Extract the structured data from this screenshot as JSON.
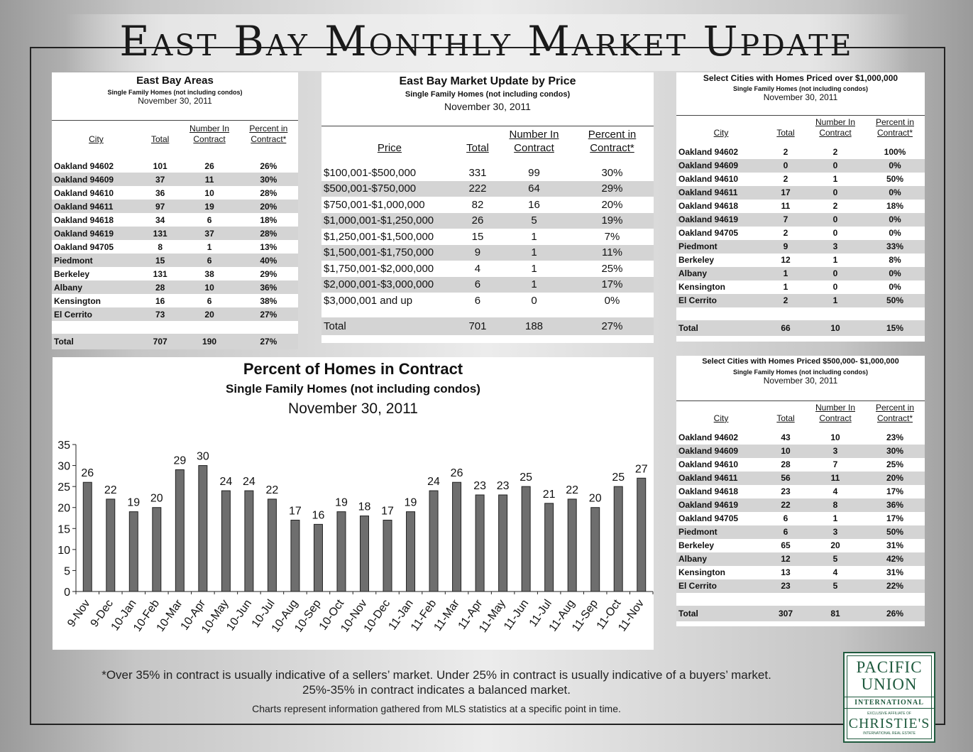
{
  "title": "East Bay Monthly Market Update",
  "areas": {
    "title": "East Bay Areas",
    "subtitle": "Single Family Homes (not including condos)",
    "date": "November 30, 2011",
    "headers": [
      "City",
      "Total",
      "Number In Contract",
      "Percent in Contract*"
    ],
    "rows": [
      [
        "Oakland 94602",
        "101",
        "26",
        "26%"
      ],
      [
        "Oakland 94609",
        "37",
        "11",
        "30%"
      ],
      [
        "Oakland 94610",
        "36",
        "10",
        "28%"
      ],
      [
        "Oakland 94611",
        "97",
        "19",
        "20%"
      ],
      [
        "Oakland 94618",
        "34",
        "6",
        "18%"
      ],
      [
        "Oakland 94619",
        "131",
        "37",
        "28%"
      ],
      [
        "Oakland 94705",
        "8",
        "1",
        "13%"
      ],
      [
        "Piedmont",
        "15",
        "6",
        "40%"
      ],
      [
        "Berkeley",
        "131",
        "38",
        "29%"
      ],
      [
        "Albany",
        "28",
        "10",
        "36%"
      ],
      [
        "Kensington",
        "16",
        "6",
        "38%"
      ],
      [
        "El Cerrito",
        "73",
        "20",
        "27%"
      ]
    ],
    "total": [
      "Total",
      "707",
      "190",
      "27%"
    ]
  },
  "price": {
    "title": "East Bay Market Update by Price",
    "subtitle": "Single Family Homes (not including condos)",
    "date": "November 30, 2011",
    "headers": [
      "Price",
      "Total",
      "Number In Contract",
      "Percent in Contract*"
    ],
    "rows": [
      [
        "$100,001-$500,000",
        "331",
        "99",
        "30%"
      ],
      [
        "$500,001-$750,000",
        "222",
        "64",
        "29%"
      ],
      [
        "$750,001-$1,000,000",
        "82",
        "16",
        "20%"
      ],
      [
        "$1,000,001-$1,250,000",
        "26",
        "5",
        "19%"
      ],
      [
        "$1,250,001-$1,500,000",
        "15",
        "1",
        "7%"
      ],
      [
        "$1,500,001-$1,750,000",
        "9",
        "1",
        "11%"
      ],
      [
        "$1,750,001-$2,000,000",
        "4",
        "1",
        "25%"
      ],
      [
        "$2,000,001-$3,000,000",
        "6",
        "1",
        "17%"
      ],
      [
        "$3,000,001 and up",
        "6",
        "0",
        "0%"
      ]
    ],
    "total": [
      "Total",
      "701",
      "188",
      "27%"
    ]
  },
  "over_million": {
    "title": "Select Cities with Homes Priced over $1,000,000",
    "subtitle": "Single Family Homes (not including condos)",
    "date": "November 30, 2011",
    "headers": [
      "City",
      "Total",
      "Number In Contract",
      "Percent in Contract*"
    ],
    "rows": [
      [
        "Oakland 94602",
        "2",
        "2",
        "100%"
      ],
      [
        "Oakland 94609",
        "0",
        "0",
        "0%"
      ],
      [
        "Oakland 94610",
        "2",
        "1",
        "50%"
      ],
      [
        "Oakland 94611",
        "17",
        "0",
        "0%"
      ],
      [
        "Oakland 94618",
        "11",
        "2",
        "18%"
      ],
      [
        "Oakland 94619",
        "7",
        "0",
        "0%"
      ],
      [
        "Oakland 94705",
        "2",
        "0",
        "0%"
      ],
      [
        "Piedmont",
        "9",
        "3",
        "33%"
      ],
      [
        "Berkeley",
        "12",
        "1",
        "8%"
      ],
      [
        "Albany",
        "1",
        "0",
        "0%"
      ],
      [
        "Kensington",
        "1",
        "0",
        "0%"
      ],
      [
        "El Cerrito",
        "2",
        "1",
        "50%"
      ]
    ],
    "total": [
      "Total",
      "66",
      "10",
      "15%"
    ]
  },
  "mid_range": {
    "title": "Select Cities with Homes Priced $500,000- $1,000,000",
    "subtitle": "Single Family Homes (not including condos)",
    "date": "November 30, 2011",
    "headers": [
      "City",
      "Total",
      "Number In Contract",
      "Percent in Contract*"
    ],
    "rows": [
      [
        "Oakland 94602",
        "43",
        "10",
        "23%"
      ],
      [
        "Oakland 94609",
        "10",
        "3",
        "30%"
      ],
      [
        "Oakland 94610",
        "28",
        "7",
        "25%"
      ],
      [
        "Oakland 94611",
        "56",
        "11",
        "20%"
      ],
      [
        "Oakland 94618",
        "23",
        "4",
        "17%"
      ],
      [
        "Oakland 94619",
        "22",
        "8",
        "36%"
      ],
      [
        "Oakland 94705",
        "6",
        "1",
        "17%"
      ],
      [
        "Piedmont",
        "6",
        "3",
        "50%"
      ],
      [
        "Berkeley",
        "65",
        "20",
        "31%"
      ],
      [
        "Albany",
        "12",
        "5",
        "42%"
      ],
      [
        "Kensington",
        "13",
        "4",
        "31%"
      ],
      [
        "El Cerrito",
        "23",
        "5",
        "22%"
      ]
    ],
    "total": [
      "Total",
      "307",
      "81",
      "26%"
    ]
  },
  "chart_data": {
    "type": "bar",
    "title": "Percent of Homes in Contract",
    "subtitle": "Single Family Homes (not including condos)",
    "date": "November 30, 2011",
    "categories": [
      "9-Nov",
      "9-Dec",
      "10-Jan",
      "10-Feb",
      "10-Mar",
      "10-Apr",
      "10-May",
      "10-Jun",
      "10-Jul",
      "10-Aug",
      "10-Sep",
      "10-Oct",
      "10-Nov",
      "10-Dec",
      "11-Jan",
      "11-Feb",
      "11-Mar",
      "11-Apr",
      "11-May",
      "11-Jun",
      "11-Jul",
      "11-Aug",
      "11-Sep",
      "11-Oct",
      "11-Nov"
    ],
    "values": [
      26,
      22,
      19,
      20,
      29,
      30,
      24,
      24,
      22,
      17,
      16,
      19,
      18,
      17,
      19,
      24,
      26,
      23,
      23,
      25,
      21,
      22,
      20,
      25,
      27
    ],
    "ylim": [
      0,
      35
    ],
    "yticks": [
      0,
      5,
      10,
      15,
      20,
      25,
      30,
      35
    ],
    "grid": false,
    "bar_color": "#6e6e6e"
  },
  "footnote": {
    "line1": "*Over 35% in contract is usually indicative of a sellers’ market. Under 25% in contract is usually indicative of a buyers’ market.",
    "line2": "25%-35% in contract indicates a balanced market.",
    "source": "Charts represent information gathered from MLS statistics at a specific point in time."
  },
  "logo": {
    "line1": "PACIFIC",
    "line2": "UNION",
    "line3": "INTERNATIONAL",
    "line4": "EXCLUSIVE AFFILIATE OF",
    "line5": "CHRISTIE'S",
    "line6": "INTERNATIONAL REAL ESTATE",
    "color": "#1f5a3e"
  }
}
